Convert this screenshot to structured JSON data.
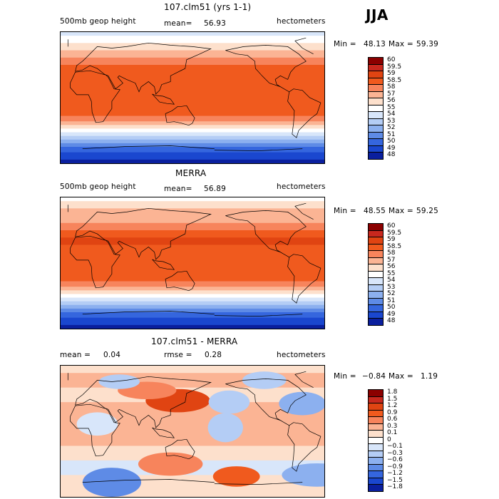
{
  "season": "JJA",
  "colors": {
    "coast": "#000000",
    "frame": "#000000"
  },
  "chart_data": [
    {
      "type": "heatmap",
      "title": "107.clm51 (yrs 1-1)",
      "left_label": "500mb geop height",
      "stat_label": "mean=",
      "stat_value": "56.93",
      "units": "hectometers",
      "min_label": "Min =",
      "min_value": "48.13",
      "max_label": "Max =",
      "max_value": "59.39",
      "levels": [
        "60",
        "59.5",
        "59",
        "58.5",
        "58",
        "57",
        "56",
        "55",
        "54",
        "53",
        "52",
        "51",
        "50",
        "49",
        "48"
      ],
      "colors": [
        "#8b0000",
        "#c8281e",
        "#e04412",
        "#f05a1e",
        "#f7845c",
        "#fbb494",
        "#fde0cc",
        "#ffffff",
        "#d8e6fa",
        "#b4cdf5",
        "#8cb0ef",
        "#5e8be6",
        "#3566de",
        "#1a47cf",
        "#0a1f9e"
      ],
      "bands": [
        {
          "lat": 90,
          "level": 54
        },
        {
          "lat": 80,
          "level": 55
        },
        {
          "lat": 70,
          "level": 56
        },
        {
          "lat": 60,
          "level": 57
        },
        {
          "lat": 50,
          "level": 58
        },
        {
          "lat": 40,
          "level": 58.5
        },
        {
          "lat": 30,
          "level": 58.5
        },
        {
          "lat": 20,
          "level": 58.5
        },
        {
          "lat": 10,
          "level": 58.5
        },
        {
          "lat": 0,
          "level": 58.5
        },
        {
          "lat": -10,
          "level": 58.5
        },
        {
          "lat": -20,
          "level": 58.5
        },
        {
          "lat": -30,
          "level": 58
        },
        {
          "lat": -35,
          "level": 57
        },
        {
          "lat": -40,
          "level": 56
        },
        {
          "lat": -45,
          "level": 55
        },
        {
          "lat": -50,
          "level": 54
        },
        {
          "lat": -55,
          "level": 53
        },
        {
          "lat": -60,
          "level": 52
        },
        {
          "lat": -65,
          "level": 51
        },
        {
          "lat": -70,
          "level": 50
        },
        {
          "lat": -80,
          "level": 49
        },
        {
          "lat": -90,
          "level": 48
        }
      ]
    },
    {
      "type": "heatmap",
      "title": "MERRA",
      "left_label": "500mb geop height",
      "stat_label": "mean=",
      "stat_value": "56.89",
      "units": "hectometers",
      "min_label": "Min =",
      "min_value": "48.55",
      "max_label": "Max =",
      "max_value": "59.25",
      "levels": [
        "60",
        "59.5",
        "59",
        "58.5",
        "58",
        "57",
        "56",
        "55",
        "54",
        "53",
        "52",
        "51",
        "50",
        "49",
        "48"
      ],
      "colors": [
        "#8b0000",
        "#c8281e",
        "#e04412",
        "#f05a1e",
        "#f7845c",
        "#fbb494",
        "#fde0cc",
        "#ffffff",
        "#d8e6fa",
        "#b4cdf5",
        "#8cb0ef",
        "#5e8be6",
        "#3566de",
        "#1a47cf",
        "#0a1f9e"
      ],
      "bands": [
        {
          "lat": 90,
          "level": 55
        },
        {
          "lat": 80,
          "level": 56
        },
        {
          "lat": 70,
          "level": 57
        },
        {
          "lat": 60,
          "level": 57
        },
        {
          "lat": 50,
          "level": 58
        },
        {
          "lat": 40,
          "level": 58.5
        },
        {
          "lat": 30,
          "level": 59
        },
        {
          "lat": 20,
          "level": 58.5
        },
        {
          "lat": 10,
          "level": 58.5
        },
        {
          "lat": 0,
          "level": 58.5
        },
        {
          "lat": -10,
          "level": 58.5
        },
        {
          "lat": -20,
          "level": 58.5
        },
        {
          "lat": -30,
          "level": 58
        },
        {
          "lat": -35,
          "level": 57
        },
        {
          "lat": -40,
          "level": 56
        },
        {
          "lat": -45,
          "level": 55
        },
        {
          "lat": -50,
          "level": 54
        },
        {
          "lat": -55,
          "level": 53
        },
        {
          "lat": -60,
          "level": 52
        },
        {
          "lat": -65,
          "level": 51
        },
        {
          "lat": -70,
          "level": 50
        },
        {
          "lat": -80,
          "level": 49
        },
        {
          "lat": -90,
          "level": 48
        }
      ]
    },
    {
      "type": "heatmap",
      "title": "107.clm51 - MERRA",
      "left_label": "mean =",
      "left_value": "0.04",
      "stat_label": "rmse =",
      "stat_value": "0.28",
      "units": "hectometers",
      "min_label": "Min =",
      "min_value": "−0.84",
      "max_label": "Max =",
      "max_value": "1.19",
      "levels": [
        "1.8",
        "1.5",
        "1.2",
        "0.9",
        "0.6",
        "0.3",
        "0.1",
        "0",
        "−0.1",
        "−0.3",
        "−0.6",
        "−0.9",
        "−1.2",
        "−1.5",
        "−1.8"
      ],
      "colors": [
        "#8b0000",
        "#c8281e",
        "#e04412",
        "#f05a1e",
        "#f7845c",
        "#fbb494",
        "#fde0cc",
        "#ffffff",
        "#d8e6fa",
        "#b4cdf5",
        "#8cb0ef",
        "#5e8be6",
        "#3566de",
        "#1a47cf",
        "#0a1f9e"
      ],
      "bands": [
        {
          "lat": 90,
          "level": 0.1
        },
        {
          "lat": 70,
          "level": 0.3
        },
        {
          "lat": 50,
          "level": 0.1
        },
        {
          "lat": 30,
          "level": 0.3
        },
        {
          "lat": 10,
          "level": 0.3
        },
        {
          "lat": -10,
          "level": 0.3
        },
        {
          "lat": -30,
          "level": 0.1
        },
        {
          "lat": -50,
          "level": -0.1
        },
        {
          "lat": -70,
          "level": 0.1
        },
        {
          "lat": -90,
          "level": 0.1
        }
      ],
      "anomalies": [
        {
          "lon": 130,
          "lat": 42,
          "rx": 22,
          "ry": 8,
          "level": 1.2
        },
        {
          "lon": 88,
          "lat": 56,
          "rx": 20,
          "ry": 6,
          "level": 0.6
        },
        {
          "lon": -112,
          "lat": 70,
          "rx": 15,
          "ry": 6,
          "level": -0.3
        },
        {
          "lon": 50,
          "lat": 68,
          "rx": 14,
          "ry": 5,
          "level": -0.3
        },
        {
          "lon": -60,
          "lat": 38,
          "rx": 16,
          "ry": 8,
          "level": -0.6
        },
        {
          "lon": -160,
          "lat": 40,
          "rx": 14,
          "ry": 8,
          "level": -0.3
        },
        {
          "lon": -165,
          "lat": 5,
          "rx": 12,
          "ry": 10,
          "level": -0.3
        },
        {
          "lon": -150,
          "lat": -62,
          "rx": 16,
          "ry": 7,
          "level": 0.9
        },
        {
          "lon": -40,
          "lat": -60,
          "rx": 24,
          "ry": 8,
          "level": -0.6
        },
        {
          "lon": 40,
          "lat": -70,
          "rx": 20,
          "ry": 10,
          "level": -0.9
        },
        {
          "lon": 120,
          "lat": -45,
          "rx": 22,
          "ry": 8,
          "level": 0.6
        },
        {
          "lon": 20,
          "lat": 10,
          "rx": 14,
          "ry": 8,
          "level": -0.1
        }
      ]
    }
  ]
}
